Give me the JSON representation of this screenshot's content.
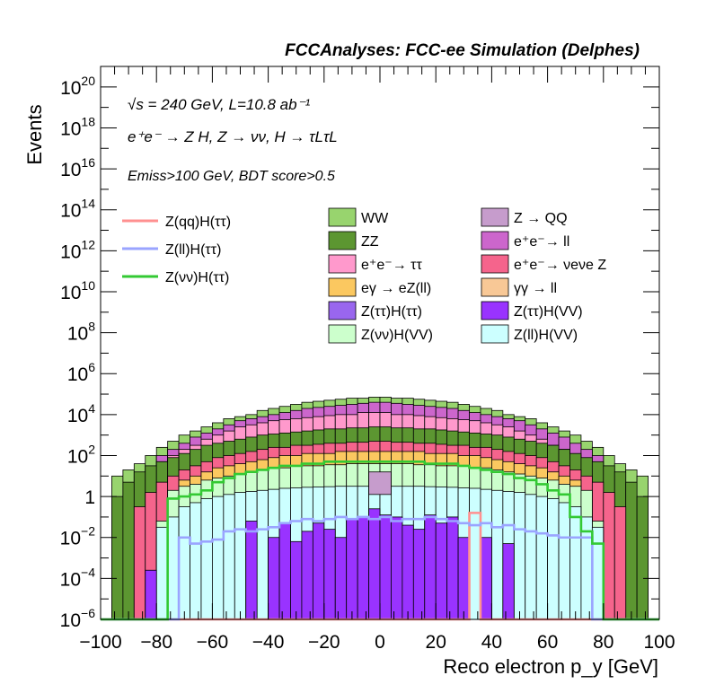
{
  "chart_data": {
    "type": "bar",
    "title": "FCCAnalyses: FCC-ee Simulation (Delphes)",
    "xlabel": "Reco electron p_y [GeV]",
    "ylabel": "Events",
    "xlim": [
      -100,
      100
    ],
    "ylim_log10": [
      -6,
      21
    ],
    "log_y": true,
    "x_ticks": [
      "−100",
      "−80",
      "−60",
      "−40",
      "−20",
      "0",
      "20",
      "40",
      "60",
      "80",
      "100"
    ],
    "y_ticks": [
      {
        "base": "10",
        "exp": "−6",
        "label": "10^-6"
      },
      {
        "base": "10",
        "exp": "−4",
        "label": "10^-4"
      },
      {
        "base": "10",
        "exp": "−2",
        "label": "10^-2"
      },
      {
        "base": "1",
        "exp": "",
        "label": "1"
      },
      {
        "base": "10",
        "exp": "2",
        "label": "10^2"
      },
      {
        "base": "10",
        "exp": "4",
        "label": "10^4"
      },
      {
        "base": "10",
        "exp": "6",
        "label": "10^6"
      },
      {
        "base": "10",
        "exp": "8",
        "label": "10^8"
      },
      {
        "base": "10",
        "exp": "10",
        "label": "10^10"
      },
      {
        "base": "10",
        "exp": "12",
        "label": "10^12"
      },
      {
        "base": "10",
        "exp": "14",
        "label": "10^14"
      },
      {
        "base": "10",
        "exp": "16",
        "label": "10^16"
      },
      {
        "base": "10",
        "exp": "18",
        "label": "10^18"
      },
      {
        "base": "10",
        "exp": "20",
        "label": "10^20"
      }
    ],
    "annotations": {
      "energy": "√s = 240 GeV, L=10.8 ab⁻¹",
      "process": "e⁺e⁻ → Z H, Z → νν, H → τLτL",
      "cuts": "Emiss>100 GeV, BDT score>0.5"
    },
    "bin_edges": [
      -100,
      -96,
      -92,
      -88,
      -84,
      -80,
      -76,
      -72,
      -68,
      -64,
      -60,
      -56,
      -52,
      -48,
      -44,
      -40,
      -36,
      -32,
      -28,
      -24,
      -20,
      -16,
      -12,
      -8,
      -4,
      0,
      4,
      8,
      12,
      16,
      20,
      24,
      28,
      32,
      36,
      40,
      44,
      48,
      52,
      56,
      60,
      64,
      68,
      72,
      76,
      80,
      84,
      88,
      92,
      96,
      100
    ],
    "legend_signal": [
      {
        "name": "Z(qq)H(ττ)",
        "color": "#ff9090"
      },
      {
        "name": "Z(ll)H(ττ)",
        "color": "#9aa4ff"
      },
      {
        "name": "Z(νν)H(ττ)",
        "color": "#33c933"
      }
    ],
    "stacks": [
      {
        "name": "WW",
        "color": "#98d46e",
        "log10_top": [
          null,
          null,
          null,
          null,
          null,
          null,
          null,
          null,
          null,
          null,
          null,
          null,
          null,
          null,
          null,
          null,
          null,
          null,
          null,
          null,
          null,
          null,
          null,
          null,
          null,
          null,
          null,
          null,
          null,
          null,
          null,
          null,
          null,
          null,
          null,
          null,
          null,
          null,
          null,
          null,
          null,
          null,
          null,
          null,
          null,
          null,
          null,
          null,
          null,
          null
        ]
      },
      {
        "name": "Z → QQ",
        "color": "#c69ccc"
      },
      {
        "name": "ZZ",
        "color": "#5c9631"
      },
      {
        "name": "e⁺e⁻→ ll",
        "color": "#cc66cc"
      },
      {
        "name": "e⁺e⁻→ ττ",
        "color": "#ff99cc"
      },
      {
        "name": "e⁺e⁻→ νeνe Z",
        "color": "#f5648c"
      },
      {
        "name": "eγ → eZ(ll)",
        "color": "#fbc860"
      },
      {
        "name": "γγ → ll",
        "color": "#f8c896"
      },
      {
        "name": "Z(ττ)H(ττ)",
        "color": "#9966ee"
      },
      {
        "name": "Z(ττ)H(VV)",
        "color": "#9933ff"
      },
      {
        "name": "Z(νν)H(VV)",
        "color": "#ccffcc"
      },
      {
        "name": "Z(ll)H(VV)",
        "color": "#ccffff"
      }
    ],
    "stack_tops_log10": {
      "Z(ll)H(VV)": [
        null,
        null,
        null,
        null,
        null,
        -1.5,
        -1.0,
        -0.5,
        -0.3,
        -0.1,
        0.0,
        0.1,
        0.2,
        0.25,
        0.3,
        0.35,
        0.4,
        0.42,
        0.45,
        0.47,
        0.48,
        0.5,
        0.5,
        0.5,
        0.5,
        0.5,
        0.5,
        0.5,
        0.5,
        0.48,
        0.47,
        0.45,
        0.42,
        0.4,
        0.35,
        0.3,
        0.25,
        0.2,
        0.1,
        0.0,
        -0.1,
        -0.3,
        -0.5,
        -1.0,
        -1.5,
        -6,
        null,
        null,
        null,
        null
      ],
      "Z(νν)H(VV)": [
        null,
        null,
        null,
        null,
        null,
        -1.2,
        0.3,
        0.5,
        0.6,
        0.8,
        0.9,
        1.0,
        1.1,
        1.2,
        1.3,
        1.4,
        1.4,
        1.5,
        1.5,
        1.5,
        1.55,
        1.55,
        1.6,
        1.6,
        1.6,
        1.6,
        1.6,
        1.6,
        1.55,
        1.55,
        1.5,
        1.5,
        1.5,
        1.4,
        1.4,
        1.3,
        1.2,
        1.1,
        1.0,
        0.9,
        0.8,
        0.6,
        0.5,
        0.3,
        -1.2,
        -6,
        null,
        null,
        null,
        null
      ],
      "eγ → eZ(ll)": [
        null,
        null,
        null,
        null,
        null,
        null,
        null,
        0.8,
        1.0,
        1.2,
        1.4,
        1.5,
        1.6,
        1.7,
        1.8,
        1.9,
        2.0,
        2.0,
        2.1,
        2.1,
        2.1,
        2.2,
        2.2,
        2.2,
        2.2,
        2.2,
        2.2,
        2.2,
        2.2,
        2.1,
        2.1,
        2.1,
        2.0,
        2.0,
        1.9,
        1.8,
        1.7,
        1.6,
        1.5,
        1.4,
        1.2,
        1.0,
        0.8,
        null,
        null,
        null,
        null,
        null,
        null,
        null
      ],
      "e⁺e⁻→ νeνe Z": [
        null,
        null,
        null,
        -0.5,
        0.2,
        0.7,
        1.0,
        1.3,
        1.5,
        1.7,
        1.9,
        2.0,
        2.1,
        2.2,
        2.3,
        2.4,
        2.4,
        2.5,
        2.5,
        2.55,
        2.6,
        2.6,
        2.65,
        2.65,
        2.7,
        2.7,
        2.65,
        2.65,
        2.6,
        2.6,
        2.55,
        2.5,
        2.5,
        2.4,
        2.4,
        2.3,
        2.2,
        2.1,
        2.0,
        1.9,
        1.7,
        1.5,
        1.3,
        1.0,
        0.7,
        0.2,
        -0.5,
        null,
        null,
        null
      ],
      "ZZ": [
        null,
        0.0,
        0.7,
        1.2,
        1.5,
        1.7,
        1.9,
        2.1,
        2.3,
        2.5,
        2.6,
        2.7,
        2.8,
        2.9,
        3.0,
        3.05,
        3.1,
        3.15,
        3.2,
        3.25,
        3.3,
        3.3,
        3.35,
        3.35,
        3.4,
        3.4,
        3.35,
        3.35,
        3.3,
        3.3,
        3.25,
        3.2,
        3.15,
        3.1,
        3.05,
        3.0,
        2.9,
        2.8,
        2.7,
        2.6,
        2.5,
        2.3,
        2.1,
        1.9,
        1.7,
        1.5,
        1.2,
        0.7,
        0.0,
        null
      ],
      "e⁺e⁻→ ττ": [
        null,
        null,
        null,
        null,
        null,
        1.7,
        2.0,
        2.3,
        2.5,
        2.8,
        3.0,
        3.2,
        3.4,
        3.5,
        3.6,
        3.7,
        3.75,
        3.8,
        3.85,
        3.9,
        3.95,
        4.0,
        4.0,
        4.1,
        4.1,
        4.1,
        4.0,
        4.0,
        3.95,
        3.9,
        3.85,
        3.8,
        3.75,
        3.7,
        3.6,
        3.5,
        3.4,
        3.2,
        3.0,
        2.8,
        2.5,
        2.3,
        2.0,
        1.7,
        null,
        null,
        null,
        null,
        null,
        null
      ],
      "e⁺e⁻→ ll": [
        null,
        null,
        null,
        null,
        null,
        2.0,
        2.3,
        2.6,
        2.9,
        3.1,
        3.3,
        3.5,
        3.7,
        3.8,
        3.9,
        4.0,
        4.1,
        4.2,
        4.3,
        4.35,
        4.4,
        4.45,
        4.5,
        4.55,
        4.6,
        4.6,
        4.55,
        4.5,
        4.45,
        4.4,
        4.35,
        4.3,
        4.2,
        4.1,
        4.0,
        3.9,
        3.8,
        3.7,
        3.5,
        3.3,
        3.1,
        2.9,
        2.6,
        2.3,
        2.0,
        null,
        null,
        null,
        null,
        null
      ],
      "WW": [
        null,
        1.0,
        1.3,
        1.6,
        2.0,
        2.4,
        2.7,
        3.0,
        3.2,
        3.4,
        3.6,
        3.8,
        3.9,
        4.0,
        4.2,
        4.3,
        4.4,
        4.5,
        4.6,
        4.65,
        4.7,
        4.75,
        4.8,
        4.8,
        4.85,
        4.85,
        4.8,
        4.8,
        4.75,
        4.7,
        4.65,
        4.6,
        4.5,
        4.4,
        4.3,
        4.2,
        4.0,
        3.9,
        3.8,
        3.6,
        3.4,
        3.2,
        3.0,
        2.7,
        2.4,
        2.0,
        1.6,
        1.3,
        1.0,
        null
      ]
    },
    "signal_lines_log10": {
      "Z(qq)H(ττ)": [
        -6,
        -6,
        -6,
        -6,
        -6,
        -6,
        -6,
        -6,
        -6,
        -6,
        -6,
        -6,
        -6,
        -6,
        -6,
        -6,
        -6,
        -6,
        -6,
        -6,
        -6,
        -6,
        -6,
        -6,
        -6,
        -6,
        -6,
        -6,
        -6,
        -6,
        -6,
        -6,
        -6,
        -0.8,
        -6,
        -6,
        -6,
        -6,
        -6,
        -6,
        -6,
        -6,
        -6,
        -6,
        -6,
        -6,
        -6,
        -6,
        -6,
        -6
      ],
      "Z(ll)H(ττ)": [
        -6,
        -6,
        -6,
        -6,
        -6,
        -6,
        -6,
        -2.0,
        -2.3,
        -2.2,
        -2.1,
        -1.7,
        -1.6,
        -1.7,
        -1.6,
        -1.5,
        -1.3,
        -1.2,
        -1.1,
        -1.2,
        -1.1,
        -1.0,
        -1.1,
        -1.0,
        -1.1,
        -1.0,
        -1.2,
        -1.1,
        -1.1,
        -1.0,
        -1.1,
        -1.2,
        -1.3,
        -1.4,
        -1.3,
        -1.5,
        -1.4,
        -1.6,
        -1.7,
        -1.8,
        -1.9,
        -2.0,
        -2.0,
        -2.0,
        -6,
        -6,
        -6,
        -6,
        -6,
        -6
      ],
      "Z(νν)H(ττ)": [
        -6,
        -6,
        -6,
        -6,
        -6,
        -6,
        -0.1,
        0.0,
        0.1,
        0.3,
        0.7,
        0.9,
        1.1,
        1.2,
        1.3,
        1.4,
        1.5,
        1.5,
        1.6,
        1.6,
        1.7,
        1.7,
        1.7,
        1.7,
        1.7,
        1.7,
        1.7,
        1.7,
        1.7,
        1.6,
        1.6,
        1.6,
        1.5,
        1.4,
        1.3,
        1.2,
        1.1,
        0.9,
        0.8,
        0.6,
        0.3,
        0.1,
        -1.0,
        -1.7,
        -2.3,
        -6,
        -6,
        -6,
        -6,
        -6
      ]
    },
    "purple_bars_log10": {
      "edges_start": -40,
      "values": [
        -2.0,
        -1.3,
        -2.2,
        -1.7,
        -1.3,
        -1.6,
        -2.0,
        -1.1,
        -1.0,
        -0.6,
        -0.9,
        -1.0,
        -1.4,
        -1.6,
        -0.9,
        -1.3,
        -1.0,
        -2.0,
        -6
      ],
      "extra_bins": [
        {
          "x0": -84,
          "x1": -80,
          "v": -3.6
        },
        {
          "x0": -48,
          "x1": -44,
          "v": -1.2
        },
        {
          "x0": 36,
          "x1": 40,
          "v": -2.0
        },
        {
          "x0": 44,
          "x1": 48,
          "v": -2.3
        }
      ]
    },
    "zqq_box": {
      "x0": -4,
      "x1": 4,
      "log10_bottom": 0.1,
      "log10_top": 1.2
    }
  }
}
